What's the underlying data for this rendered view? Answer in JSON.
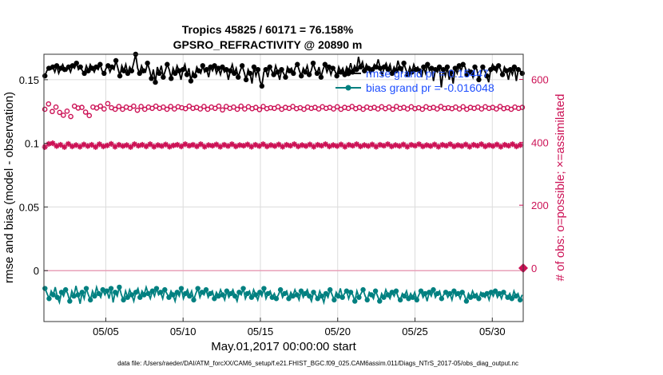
{
  "chart_data": {
    "type": "line",
    "title_line1": "Tropics 45825 / 60171 = 76.158%",
    "title_line2": "GPSRO_REFRACTIVITY @ 20890 m",
    "xlabel": "May.01,2017 00:00:00 start",
    "ylabel_left": "rmse and bias (model - observation)",
    "ylabel_right": "# of obs: o=possible; ×=assimilated",
    "footer": "data file: /Users/raeder/DAI/ATM_forcXX/CAM6_setup/f.e21.FHIST_BGC.f09_025.CAM6assim.011/Diags_NTrS_2017-05/obs_diag_output.nc",
    "x_range": [
      1.0,
      32.0
    ],
    "ylim_left": [
      -0.04,
      0.17
    ],
    "ylim_right": [
      -170,
      680
    ],
    "x_ticks": [
      {
        "value": 5,
        "label": "05/05"
      },
      {
        "value": 10,
        "label": "05/10"
      },
      {
        "value": 15,
        "label": "05/15"
      },
      {
        "value": 20,
        "label": "05/20"
      },
      {
        "value": 25,
        "label": "05/25"
      },
      {
        "value": 30,
        "label": "05/30"
      }
    ],
    "y_ticks_left": [
      {
        "value": 0,
        "label": "0"
      },
      {
        "value": 0.05,
        "label": "0.05"
      },
      {
        "value": 0.1,
        "label": "0.1"
      },
      {
        "value": 0.15,
        "label": "0.15"
      }
    ],
    "y_ticks_right": [
      {
        "value": 0,
        "label": "0"
      },
      {
        "value": 200,
        "label": "200"
      },
      {
        "value": 400,
        "label": "400"
      },
      {
        "value": 600,
        "label": "600"
      }
    ],
    "zero_marker_right": 0,
    "legend": [
      {
        "name": "rmse",
        "label": "rmse grand pr = 0.15447"
      },
      {
        "name": "bias",
        "label": "bias grand pr = -0.016048"
      }
    ],
    "colors": {
      "rmse": "#000000",
      "bias": "#008080",
      "obs": "#cc1155",
      "zero_line": "#e8a0b8",
      "legend_text": "#1f4fff",
      "grid": "#dcdcdc"
    },
    "series": [
      {
        "name": "rmse",
        "axis": "left",
        "values": [
          0.153,
          0.157,
          0.159,
          0.158,
          0.16,
          0.156,
          0.161,
          0.155,
          0.159,
          0.162,
          0.158,
          0.157,
          0.16,
          0.156,
          0.161,
          0.159,
          0.163,
          0.158,
          0.16,
          0.157,
          0.155,
          0.161,
          0.157,
          0.162,
          0.159,
          0.156,
          0.16,
          0.158,
          0.162,
          0.157,
          0.155,
          0.159,
          0.161,
          0.156,
          0.16,
          0.158,
          0.165,
          0.159,
          0.153,
          0.161,
          0.157,
          0.162,
          0.155,
          0.16,
          0.157,
          0.163,
          0.17,
          0.159,
          0.155,
          0.161,
          0.157,
          0.156,
          0.163,
          0.158,
          0.151,
          0.158,
          0.148,
          0.16,
          0.155,
          0.161,
          0.152,
          0.157,
          0.162,
          0.158,
          0.151,
          0.159,
          0.155,
          0.161,
          0.157,
          0.15,
          0.158,
          0.162,
          0.154,
          0.159,
          0.149,
          0.156,
          0.153,
          0.16,
          0.157,
          0.155,
          0.161,
          0.156,
          0.158,
          0.152,
          0.16,
          0.157,
          0.161,
          0.155,
          0.159,
          0.154,
          0.16,
          0.156,
          0.158,
          0.15,
          0.157,
          0.162,
          0.155,
          0.159,
          0.152,
          0.157,
          0.161,
          0.156,
          0.15,
          0.158,
          0.155,
          0.147,
          0.16,
          0.153,
          0.158,
          0.149,
          0.145,
          0.156,
          0.158,
          0.152,
          0.16,
          0.157,
          0.154,
          0.161,
          0.156,
          0.15,
          0.158,
          0.155,
          0.152,
          0.16,
          0.157,
          0.159,
          0.155,
          0.16,
          0.162,
          0.157,
          0.153,
          0.159,
          0.156,
          0.161,
          0.154,
          0.157,
          0.163,
          0.158,
          0.155,
          0.16,
          0.152,
          0.158,
          0.162,
          0.156,
          0.16,
          0.154,
          0.159,
          0.157,
          0.153,
          0.16,
          0.156,
          0.159,
          0.154,
          0.16,
          0.157,
          0.163,
          0.156,
          0.161,
          0.158,
          0.168,
          0.16,
          0.164,
          0.157,
          0.162,
          0.159,
          0.155,
          0.158,
          0.162,
          0.16,
          0.166,
          0.159,
          0.153,
          0.16,
          0.163,
          0.158,
          0.162,
          0.155,
          0.16,
          0.157,
          0.165,
          0.159,
          0.156,
          0.163,
          0.158,
          0.154,
          0.16,
          0.156,
          0.162,
          0.158,
          0.16,
          0.157,
          0.152,
          0.16,
          0.155,
          0.162,
          0.157,
          0.159,
          0.149,
          0.158,
          0.156,
          0.16,
          0.144,
          0.158,
          0.153,
          0.16,
          0.15,
          0.156,
          0.147,
          0.159,
          0.155,
          0.161,
          0.157,
          0.162,
          0.16,
          0.154,
          0.158,
          0.156,
          0.152,
          0.16,
          0.158,
          0.15,
          0.155,
          0.16,
          0.157,
          0.153,
          0.148,
          0.158,
          0.162,
          0.159,
          0.156,
          0.161,
          0.158,
          0.154,
          0.16,
          0.157,
          0.15,
          0.158,
          0.154,
          0.16,
          0.149,
          0.158,
          0.157,
          0.155
        ]
      },
      {
        "name": "bias",
        "axis": "left",
        "values": [
          -0.014,
          -0.018,
          -0.022,
          -0.016,
          -0.019,
          -0.013,
          -0.021,
          -0.025,
          -0.017,
          -0.02,
          -0.015,
          -0.018,
          -0.024,
          -0.016,
          -0.02,
          -0.012,
          -0.019,
          -0.026,
          -0.017,
          -0.022,
          -0.014,
          -0.019,
          -0.023,
          -0.016,
          -0.02,
          -0.013,
          -0.018,
          -0.021,
          -0.015,
          -0.019,
          -0.016,
          -0.022,
          -0.014,
          -0.025,
          -0.017,
          -0.02,
          -0.013,
          -0.019,
          -0.023,
          -0.016,
          -0.021,
          -0.015,
          -0.019,
          -0.024,
          -0.017,
          -0.014,
          -0.021,
          -0.016,
          -0.019,
          -0.013,
          -0.018,
          -0.022,
          -0.016,
          -0.02,
          -0.014,
          -0.019,
          -0.017,
          -0.022,
          -0.015,
          -0.018,
          -0.021,
          -0.016,
          -0.019,
          -0.024,
          -0.017,
          -0.02,
          -0.014,
          -0.022,
          -0.018,
          -0.015,
          -0.02,
          -0.016,
          -0.023,
          -0.018,
          -0.014,
          -0.021,
          -0.017,
          -0.019,
          -0.015,
          -0.021,
          -0.018,
          -0.016,
          -0.022,
          -0.017,
          -0.02,
          -0.015,
          -0.019,
          -0.023,
          -0.016,
          -0.021,
          -0.018,
          -0.015,
          -0.02,
          -0.024,
          -0.017,
          -0.019,
          -0.014,
          -0.022,
          -0.018,
          -0.016,
          -0.021,
          -0.015,
          -0.019,
          -0.023,
          -0.017,
          -0.02,
          -0.014,
          -0.022,
          -0.018,
          -0.016,
          -0.021,
          -0.018,
          -0.022,
          -0.019,
          -0.015,
          -0.021,
          -0.018,
          -0.016,
          -0.022,
          -0.017,
          -0.02,
          -0.015,
          -0.019,
          -0.023,
          -0.016,
          -0.021,
          -0.018,
          -0.015,
          -0.02,
          -0.024,
          -0.017,
          -0.019,
          -0.022,
          -0.016,
          -0.02,
          -0.025,
          -0.018,
          -0.021,
          -0.015,
          -0.019,
          -0.023,
          -0.017,
          -0.02,
          -0.014,
          -0.021,
          -0.018,
          -0.016,
          -0.022,
          -0.017,
          -0.019,
          -0.024,
          -0.016,
          -0.021,
          -0.018,
          -0.015,
          -0.02,
          -0.023,
          -0.017,
          -0.019,
          -0.022,
          -0.016,
          -0.02,
          -0.024,
          -0.018,
          -0.021,
          -0.015,
          -0.019,
          -0.022,
          -0.017,
          -0.02,
          -0.016,
          -0.021,
          -0.023,
          -0.018,
          -0.02,
          -0.016,
          -0.022,
          -0.018,
          -0.021,
          -0.017,
          -0.023,
          -0.019,
          -0.016,
          -0.021,
          -0.018,
          -0.024,
          -0.017,
          -0.02,
          -0.015,
          -0.021,
          -0.018,
          -0.016,
          -0.022,
          -0.019,
          -0.017,
          -0.021,
          -0.018,
          -0.023,
          -0.016,
          -0.02,
          -0.018,
          -0.022,
          -0.017,
          -0.019,
          -0.024,
          -0.018,
          -0.021,
          -0.016,
          -0.02,
          -0.018,
          -0.022,
          -0.017,
          -0.019,
          -0.021,
          -0.018,
          -0.023,
          -0.017,
          -0.02,
          -0.016,
          -0.021,
          -0.018,
          -0.022,
          -0.017,
          -0.019,
          -0.021,
          -0.018,
          -0.022,
          -0.016,
          -0.02,
          -0.018,
          -0.023,
          -0.019
        ]
      },
      {
        "name": "obs_possible",
        "axis": "right",
        "values": [
          505,
          505,
          522,
          528,
          498,
          480,
          512,
          530,
          495,
          509,
          486,
          503,
          499,
          520,
          482,
          507,
          515,
          494,
          509,
          478,
          511,
          503,
          496,
          520,
          485,
          500,
          512,
          491,
          509,
          497,
          515,
          489,
          506,
          498,
          523,
          486,
          510,
          499,
          505,
          490,
          514,
          496,
          505,
          488,
          512,
          497,
          508,
          493,
          515,
          499,
          502,
          490,
          514,
          498,
          505,
          487,
          512,
          496,
          508,
          492,
          515,
          496,
          508,
          491,
          512,
          489,
          505,
          497,
          514,
          495,
          506,
          490,
          513,
          498,
          510,
          494,
          507,
          489,
          515,
          496,
          508,
          492,
          511,
          496,
          506,
          491,
          514,
          498,
          505,
          487,
          512,
          496,
          508,
          492,
          515,
          499,
          503,
          490,
          514,
          497,
          508,
          493,
          512,
          488,
          505,
          499,
          515,
          495,
          506,
          490,
          513,
          498,
          507,
          492,
          511,
          496,
          504,
          489,
          514,
          498,
          507,
          493,
          510,
          495,
          508,
          490,
          513,
          497,
          505,
          492,
          511,
          495,
          508,
          490,
          514,
          496,
          507,
          493,
          510,
          497,
          505,
          491,
          512,
          496,
          508,
          492,
          511,
          497,
          506,
          490,
          513,
          496,
          508,
          493,
          511,
          495,
          506,
          491,
          513,
          497,
          505,
          492,
          511,
          496,
          508,
          490,
          514,
          497,
          507,
          493,
          511,
          496,
          505,
          491,
          512,
          495,
          508,
          492,
          511,
          497,
          506,
          490,
          513,
          495,
          507,
          493,
          512,
          496,
          505,
          491,
          514,
          497,
          508,
          492,
          511,
          495,
          506,
          490,
          513,
          497,
          507,
          493,
          510,
          496,
          505,
          491,
          513,
          495,
          508,
          492,
          511,
          497,
          506,
          490,
          514,
          496,
          508,
          493,
          510,
          495,
          507,
          491,
          512,
          496,
          506,
          492,
          513,
          497,
          505,
          490,
          511,
          496,
          508,
          493,
          512,
          495,
          506,
          491,
          513,
          497,
          508,
          492,
          511,
          496,
          506,
          490,
          514,
          495,
          507,
          493,
          510,
          497,
          505,
          491,
          512,
          496,
          508,
          492,
          511
        ]
      },
      {
        "name": "obs_assimilated",
        "axis": "right",
        "values": [
          385,
          390,
          395,
          403,
          397,
          405,
          388,
          398,
          392,
          405,
          385,
          399,
          395,
          402,
          387,
          398,
          391,
          404,
          386,
          400,
          393,
          397,
          388,
          405,
          392,
          398,
          385,
          401,
          394,
          399,
          387,
          404,
          390,
          398,
          395,
          402,
          386,
          399,
          392,
          405,
          388,
          397,
          391,
          402,
          385,
          398,
          394,
          401,
          389,
          404,
          392,
          397,
          387,
          402,
          394,
          398,
          386,
          403,
          391,
          399,
          388,
          402,
          393,
          397,
          386,
          404,
          390,
          399,
          392,
          401,
          387,
          398,
          394,
          403,
          389,
          398,
          392,
          401,
          387,
          399,
          394,
          402,
          386,
          398,
          391,
          404,
          389,
          397,
          393,
          402,
          386,
          399,
          392,
          401,
          388,
          397,
          394,
          404,
          387,
          398,
          391,
          402,
          389,
          399,
          393,
          401,
          386,
          398,
          392,
          403,
          388,
          397,
          394,
          401,
          387,
          399,
          391,
          404,
          388,
          398,
          393,
          402,
          386,
          399,
          392,
          401,
          389,
          397,
          394,
          403,
          387,
          398,
          391,
          402,
          388,
          399,
          393,
          401,
          386,
          397,
          392,
          404,
          389,
          398,
          394,
          402,
          387,
          399,
          391,
          401,
          388,
          397,
          393,
          403,
          386,
          398,
          392,
          402,
          389,
          399,
          394,
          401,
          387,
          398,
          391,
          404,
          388,
          397,
          393,
          402,
          386,
          399,
          392,
          401,
          389,
          398,
          394,
          403,
          387,
          399,
          391,
          402,
          388,
          397,
          393,
          401,
          386,
          398,
          392,
          404,
          389,
          399,
          394,
          402,
          387,
          398,
          391,
          401,
          388,
          397,
          393,
          403,
          386,
          399,
          392,
          402,
          389,
          398,
          394,
          401,
          387,
          397,
          391,
          404,
          388,
          399,
          393,
          402,
          386,
          398,
          392,
          401,
          389,
          397,
          394,
          403,
          387,
          399,
          391,
          402,
          388,
          398,
          393,
          401,
          386,
          397,
          392,
          404,
          389,
          399,
          394,
          402,
          387,
          398,
          391,
          401
        ]
      }
    ]
  }
}
